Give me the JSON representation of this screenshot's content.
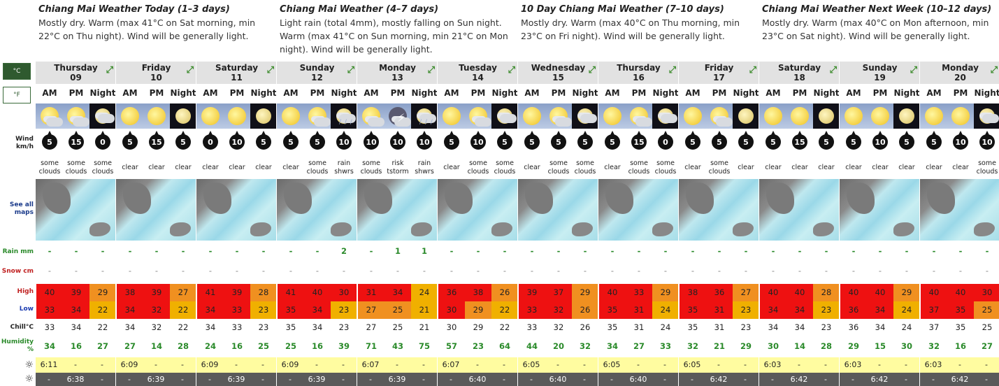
{
  "summaries": [
    {
      "title": "Chiang Mai Weather Today (1–3 days)",
      "text": "Mostly dry. Warm (max 41°C on Sat morning, min 22°C on Thu night). Wind will be generally light."
    },
    {
      "title": "Chiang Mai Weather (4–7 days)",
      "text": "Light rain (total 4mm), mostly falling on Sun night. Warm (max 41°C on Sun morning, min 21°C on Mon night). Wind will be generally light."
    },
    {
      "title": "10 Day Chiang Mai Weather (7–10 days)",
      "text": "Mostly dry. Warm (max 40°C on Thu morning, min 23°C on Fri night). Wind will be generally light."
    },
    {
      "title": "Chiang Mai Weather Next Week (10–12 days)",
      "text": "Mostly dry. Warm (max 40°C on Mon afternoon, min 23°C on Sat night). Wind will be generally light."
    }
  ],
  "units": {
    "c": "°C",
    "f": "°F"
  },
  "labels": {
    "wind": "Wind\nkm/h",
    "maps": "See all maps",
    "rain": "Rain mm",
    "snow": "Snow cm",
    "high": "High",
    "low": "Low",
    "chill": "Chill°C",
    "humidity": "Humidity %"
  },
  "periods": [
    "AM",
    "PM",
    "Night"
  ],
  "colors": {
    "hot": "#ee1111",
    "warm": "#f07000",
    "mild": "#f0b000",
    "orange": "#f09020"
  },
  "days": [
    {
      "name": "Thursday",
      "date": "09",
      "wx": [
        "sun-cloud",
        "sun-cloud",
        "night-cloud"
      ],
      "wind": [
        "5",
        "15",
        "0"
      ],
      "sky": [
        "some clouds",
        "some clouds",
        "some clouds"
      ],
      "rain": [
        "-",
        "-",
        "-"
      ],
      "snow": [
        "-",
        "-",
        "-"
      ],
      "high": [
        "40",
        "39",
        "29"
      ],
      "low": [
        "33",
        "34",
        "22"
      ],
      "chill": [
        "33",
        "34",
        "22"
      ],
      "hum": [
        "34",
        "16",
        "27"
      ],
      "sunrise": "6:11",
      "sunset": "6:38"
    },
    {
      "name": "Friday",
      "date": "10",
      "wx": [
        "sun",
        "sun",
        "moon"
      ],
      "wind": [
        "5",
        "15",
        "5"
      ],
      "sky": [
        "clear",
        "clear",
        "clear"
      ],
      "rain": [
        "-",
        "-",
        "-"
      ],
      "snow": [
        "-",
        "-",
        "-"
      ],
      "high": [
        "38",
        "39",
        "27"
      ],
      "low": [
        "34",
        "32",
        "22"
      ],
      "chill": [
        "34",
        "32",
        "22"
      ],
      "hum": [
        "27",
        "14",
        "28"
      ],
      "sunrise": "6:09",
      "sunset": "6:39"
    },
    {
      "name": "Saturday",
      "date": "11",
      "wx": [
        "sun",
        "sun",
        "moon"
      ],
      "wind": [
        "0",
        "10",
        "5"
      ],
      "sky": [
        "clear",
        "clear",
        "clear"
      ],
      "rain": [
        "-",
        "-",
        "-"
      ],
      "snow": [
        "-",
        "-",
        "-"
      ],
      "high": [
        "41",
        "39",
        "28"
      ],
      "low": [
        "34",
        "33",
        "23"
      ],
      "chill": [
        "34",
        "33",
        "23"
      ],
      "hum": [
        "24",
        "16",
        "25"
      ],
      "sunrise": "6:09",
      "sunset": "6:39"
    },
    {
      "name": "Sunday",
      "date": "12",
      "wx": [
        "sun",
        "sun-cloud",
        "night-rain"
      ],
      "wind": [
        "5",
        "5",
        "10"
      ],
      "sky": [
        "clear",
        "some clouds",
        "rain shwrs"
      ],
      "rain": [
        "-",
        "-",
        "2"
      ],
      "snow": [
        "-",
        "-",
        "-"
      ],
      "high": [
        "41",
        "40",
        "30"
      ],
      "low": [
        "35",
        "34",
        "23"
      ],
      "chill": [
        "35",
        "34",
        "23"
      ],
      "hum": [
        "25",
        "16",
        "39"
      ],
      "sunrise": "6:09",
      "sunset": "6:39"
    },
    {
      "name": "Monday",
      "date": "13",
      "wx": [
        "sun-cloud",
        "storm",
        "night-rain"
      ],
      "wind": [
        "10",
        "10",
        "10"
      ],
      "sky": [
        "some clouds",
        "risk tstorm",
        "rain shwrs"
      ],
      "rain": [
        "-",
        "1",
        "1"
      ],
      "snow": [
        "-",
        "-",
        "-"
      ],
      "high": [
        "31",
        "34",
        "24"
      ],
      "low": [
        "27",
        "25",
        "21"
      ],
      "chill": [
        "27",
        "25",
        "21"
      ],
      "hum": [
        "71",
        "43",
        "75"
      ],
      "sunrise": "6:07",
      "sunset": "6:39"
    },
    {
      "name": "Tuesday",
      "date": "14",
      "wx": [
        "sun",
        "sun-cloud",
        "night-cloud"
      ],
      "wind": [
        "5",
        "10",
        "5"
      ],
      "sky": [
        "clear",
        "some clouds",
        "some clouds"
      ],
      "rain": [
        "-",
        "-",
        "-"
      ],
      "snow": [
        "-",
        "-",
        "-"
      ],
      "high": [
        "36",
        "38",
        "26"
      ],
      "low": [
        "30",
        "29",
        "22"
      ],
      "chill": [
        "30",
        "29",
        "22"
      ],
      "hum": [
        "57",
        "23",
        "64"
      ],
      "sunrise": "6:07",
      "sunset": "6:40"
    },
    {
      "name": "Wednesday",
      "date": "15",
      "wx": [
        "sun",
        "sun-cloud",
        "night-cloud"
      ],
      "wind": [
        "5",
        "5",
        "5"
      ],
      "sky": [
        "clear",
        "some clouds",
        "some clouds"
      ],
      "rain": [
        "-",
        "-",
        "-"
      ],
      "snow": [
        "-",
        "-",
        "-"
      ],
      "high": [
        "39",
        "37",
        "29"
      ],
      "low": [
        "33",
        "32",
        "26"
      ],
      "chill": [
        "33",
        "32",
        "26"
      ],
      "hum": [
        "44",
        "20",
        "32"
      ],
      "sunrise": "6:05",
      "sunset": "6:40"
    },
    {
      "name": "Thursday",
      "date": "16",
      "wx": [
        "sun",
        "sun-cloud",
        "night-cloud"
      ],
      "wind": [
        "5",
        "15",
        "0"
      ],
      "sky": [
        "clear",
        "some clouds",
        "some clouds"
      ],
      "rain": [
        "-",
        "-",
        "-"
      ],
      "snow": [
        "-",
        "-",
        "-"
      ],
      "high": [
        "40",
        "33",
        "29"
      ],
      "low": [
        "35",
        "31",
        "24"
      ],
      "chill": [
        "35",
        "31",
        "24"
      ],
      "hum": [
        "34",
        "27",
        "33"
      ],
      "sunrise": "6:05",
      "sunset": "6:40"
    },
    {
      "name": "Friday",
      "date": "17",
      "wx": [
        "sun",
        "sun-cloud",
        "moon"
      ],
      "wind": [
        "5",
        "5",
        "5"
      ],
      "sky": [
        "clear",
        "some clouds",
        "clear"
      ],
      "rain": [
        "-",
        "-",
        "-"
      ],
      "snow": [
        "-",
        "-",
        "-"
      ],
      "high": [
        "38",
        "36",
        "27"
      ],
      "low": [
        "35",
        "31",
        "23"
      ],
      "chill": [
        "35",
        "31",
        "23"
      ],
      "hum": [
        "32",
        "21",
        "29"
      ],
      "sunrise": "6:05",
      "sunset": "6:42"
    },
    {
      "name": "Saturday",
      "date": "18",
      "wx": [
        "sun",
        "sun",
        "moon"
      ],
      "wind": [
        "5",
        "15",
        "5"
      ],
      "sky": [
        "clear",
        "clear",
        "clear"
      ],
      "rain": [
        "-",
        "-",
        "-"
      ],
      "snow": [
        "-",
        "-",
        "-"
      ],
      "high": [
        "40",
        "40",
        "28"
      ],
      "low": [
        "34",
        "34",
        "23"
      ],
      "chill": [
        "34",
        "34",
        "23"
      ],
      "hum": [
        "30",
        "14",
        "28"
      ],
      "sunrise": "6:03",
      "sunset": "6:42"
    },
    {
      "name": "Sunday",
      "date": "19",
      "wx": [
        "sun",
        "sun",
        "moon"
      ],
      "wind": [
        "5",
        "10",
        "5"
      ],
      "sky": [
        "clear",
        "clear",
        "clear"
      ],
      "rain": [
        "-",
        "-",
        "-"
      ],
      "snow": [
        "-",
        "-",
        "-"
      ],
      "high": [
        "40",
        "40",
        "29"
      ],
      "low": [
        "36",
        "34",
        "24"
      ],
      "chill": [
        "36",
        "34",
        "24"
      ],
      "hum": [
        "29",
        "15",
        "30"
      ],
      "sunrise": "6:03",
      "sunset": "6:42"
    },
    {
      "name": "Monday",
      "date": "20",
      "wx": [
        "sun",
        "sun",
        "night-cloud"
      ],
      "wind": [
        "5",
        "10",
        "10"
      ],
      "sky": [
        "clear",
        "clear",
        "some clouds"
      ],
      "rain": [
        "-",
        "-",
        "-"
      ],
      "snow": [
        "-",
        "-",
        "-"
      ],
      "high": [
        "40",
        "40",
        "30"
      ],
      "low": [
        "37",
        "35",
        "25"
      ],
      "chill": [
        "37",
        "35",
        "25"
      ],
      "hum": [
        "32",
        "16",
        "27"
      ],
      "sunrise": "6:03",
      "sunset": "6:42"
    }
  ]
}
